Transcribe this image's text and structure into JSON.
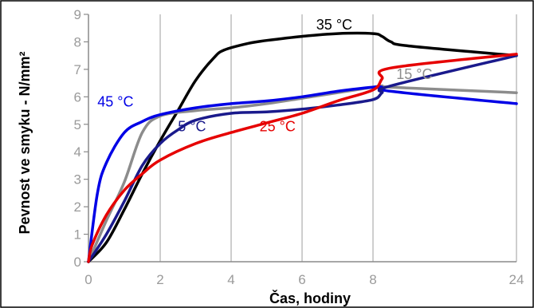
{
  "chart_data": {
    "type": "line",
    "title": "",
    "xlabel": "Čas, hodiny",
    "ylabel": "Pevnost ve smyku - N/mm²",
    "x_ticks": [
      0,
      2,
      4,
      6,
      8,
      24
    ],
    "x_tick_labels": [
      "0",
      "2",
      "4",
      "6",
      "8",
      "24"
    ],
    "y_ticks": [
      0,
      1,
      2,
      3,
      4,
      5,
      6,
      7,
      8,
      9
    ],
    "ylim": [
      0,
      9
    ],
    "grid": "vertical",
    "series": [
      {
        "name": "35 °C",
        "color": "#000000",
        "x": [
          0,
          0.5,
          1,
          1.5,
          2,
          2.5,
          3,
          3.5,
          3.8,
          4.5,
          5,
          6,
          7,
          8,
          9,
          10,
          12,
          24
        ],
        "y": [
          0,
          0.7,
          1.9,
          3.2,
          4.4,
          5.5,
          6.6,
          7.4,
          7.7,
          7.95,
          8.05,
          8.2,
          8.3,
          8.3,
          8.2,
          8.0,
          7.85,
          7.5
        ]
      },
      {
        "name": "15 °C",
        "color": "#8c8c8c",
        "x": [
          0,
          0.5,
          1,
          1.5,
          2,
          3,
          4,
          5,
          6,
          7,
          8,
          9,
          10,
          24
        ],
        "y": [
          0,
          1.5,
          2.9,
          4.7,
          5.3,
          5.5,
          5.6,
          5.75,
          5.95,
          6.15,
          6.35,
          6.4,
          6.35,
          6.15
        ]
      },
      {
        "name": "45 °C",
        "color": "#0000e6",
        "x": [
          0,
          0.25,
          0.5,
          1,
          1.5,
          2,
          3,
          4,
          5,
          6,
          7,
          8,
          9,
          10,
          24
        ],
        "y": [
          0,
          2.5,
          3.6,
          4.7,
          5.1,
          5.35,
          5.6,
          5.75,
          5.85,
          6.0,
          6.2,
          6.35,
          6.35,
          6.2,
          5.75
        ]
      },
      {
        "name": "5 °C",
        "color": "#1a1a8c",
        "x": [
          0,
          0.5,
          1,
          1.5,
          2,
          2.5,
          3,
          4,
          5,
          6,
          7,
          8,
          9,
          10,
          24
        ],
        "y": [
          0,
          1.0,
          2.2,
          3.5,
          4.3,
          4.8,
          5.15,
          5.4,
          5.45,
          5.55,
          5.7,
          5.9,
          6.15,
          6.4,
          7.5
        ]
      },
      {
        "name": "25 °C",
        "color": "#e60000",
        "x": [
          0,
          0.1,
          0.5,
          1,
          1.5,
          2,
          3,
          4,
          5,
          6,
          7,
          8,
          9,
          10,
          24
        ],
        "y": [
          0,
          0.6,
          1.7,
          2.6,
          3.2,
          3.7,
          4.3,
          4.7,
          5.05,
          5.4,
          5.85,
          6.25,
          6.65,
          7.05,
          7.55
        ]
      }
    ],
    "annotations": [
      {
        "text": "35 °C",
        "series": "35 °C",
        "x": 6.4,
        "y": 8.45
      },
      {
        "text": "15 °C",
        "series": "15 °C",
        "x": 10.6,
        "y": 6.65
      },
      {
        "text": "45 °C",
        "series": "45 °C",
        "x": 0.25,
        "y": 5.65
      },
      {
        "text": "5 °C",
        "series": "5 °C",
        "x": 2.5,
        "y": 4.75
      },
      {
        "text": "25 °C",
        "series": "25 °C",
        "x": 4.8,
        "y": 4.75
      }
    ]
  }
}
